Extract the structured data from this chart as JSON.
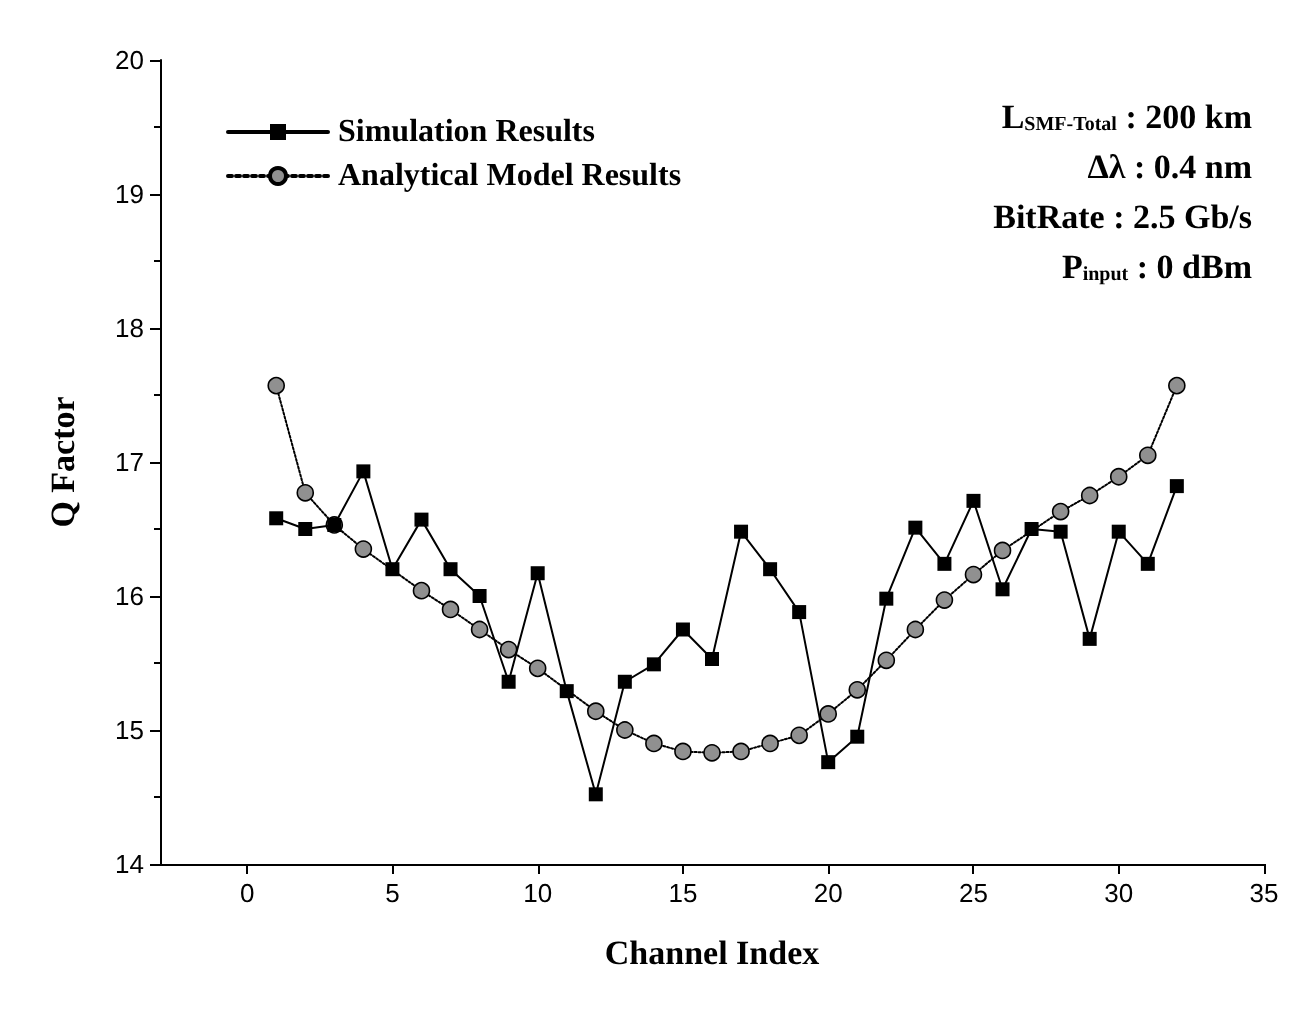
{
  "chart_data": {
    "type": "line",
    "xlabel": "Channel Index",
    "ylabel": "Q Factor",
    "x": [
      1,
      2,
      3,
      4,
      5,
      6,
      7,
      8,
      9,
      10,
      11,
      12,
      13,
      14,
      15,
      16,
      17,
      18,
      19,
      20,
      21,
      22,
      23,
      24,
      25,
      26,
      27,
      28,
      29,
      30,
      31,
      32
    ],
    "series": [
      {
        "name": "Simulation Results",
        "color": "#000000",
        "marker": "square",
        "line_style": "solid",
        "values": [
          16.58,
          16.5,
          16.53,
          16.93,
          16.2,
          16.57,
          16.2,
          16.0,
          15.36,
          16.17,
          15.29,
          14.52,
          15.36,
          15.49,
          15.75,
          15.53,
          16.48,
          16.2,
          15.88,
          14.76,
          14.95,
          15.98,
          16.51,
          16.24,
          16.71,
          16.05,
          16.5,
          16.48,
          15.68,
          16.48,
          16.24,
          16.82
        ]
      },
      {
        "name": "Analytical Model Results",
        "color": "#909090",
        "marker": "circle",
        "line_style": "dotted",
        "values": [
          17.57,
          16.77,
          16.53,
          16.35,
          null,
          16.04,
          15.9,
          15.75,
          15.6,
          15.46,
          null,
          15.14,
          15.0,
          14.9,
          14.84,
          14.83,
          14.84,
          14.9,
          14.96,
          15.12,
          15.3,
          15.52,
          15.75,
          15.97,
          16.16,
          16.34,
          null,
          16.63,
          16.75,
          16.89,
          17.05,
          17.57
        ]
      }
    ],
    "xlim": [
      -3,
      35
    ],
    "xticks": [
      0,
      5,
      10,
      15,
      20,
      25,
      30,
      35
    ],
    "ylim": [
      14,
      20
    ],
    "yticks": [
      14,
      15,
      16,
      17,
      18,
      19,
      20
    ],
    "grid": false,
    "legend": "top left",
    "annotations": [
      "L$_{SMF-Total}$ : 200 km",
      "Δλ : 0.4 nm",
      "BitRate : 2.5 Gb/s",
      "P$_{input}$ : 0 dBm"
    ]
  }
}
